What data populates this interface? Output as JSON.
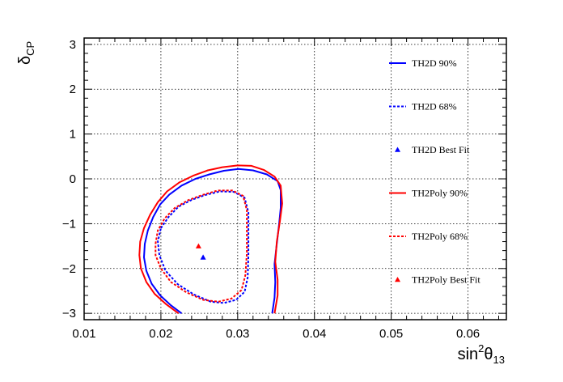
{
  "chart_data": {
    "type": "line",
    "xlabel": {
      "base": "sin",
      "sup": "2",
      "mid": "θ",
      "sub": "13"
    },
    "ylabel": {
      "base": "δ",
      "sub": "CP"
    },
    "xlim": [
      0.01,
      0.065
    ],
    "ylim": [
      -3.14159,
      3.14159
    ],
    "x_ticks": [
      0.01,
      0.02,
      0.03,
      0.04,
      0.05,
      0.06
    ],
    "x_tick_labels": [
      "0.01",
      "0.02",
      "0.03",
      "0.04",
      "0.05",
      "0.06"
    ],
    "y_ticks": [
      -3,
      -2,
      -1,
      0,
      1,
      2,
      3
    ],
    "y_tick_labels": [
      "−3",
      "−2",
      "−1",
      "0",
      "1",
      "2",
      "3"
    ],
    "grid": true,
    "legend_position": "right",
    "series": [
      {
        "name": "TH2D 90%",
        "kind": "contour",
        "color": "#0000ff",
        "dash": "solid",
        "points": [
          [
            0.0227,
            -3.0
          ],
          [
            0.0213,
            -2.82
          ],
          [
            0.0199,
            -2.6
          ],
          [
            0.0188,
            -2.34
          ],
          [
            0.0181,
            -2.05
          ],
          [
            0.0178,
            -1.75
          ],
          [
            0.0179,
            -1.45
          ],
          [
            0.0183,
            -1.15
          ],
          [
            0.019,
            -0.85
          ],
          [
            0.0199,
            -0.57
          ],
          [
            0.0211,
            -0.35
          ],
          [
            0.0227,
            -0.15
          ],
          [
            0.0245,
            0.0
          ],
          [
            0.0263,
            0.1
          ],
          [
            0.0282,
            0.18
          ],
          [
            0.0301,
            0.22
          ],
          [
            0.032,
            0.19
          ],
          [
            0.0338,
            0.1
          ],
          [
            0.0352,
            -0.05
          ],
          [
            0.0356,
            -0.25
          ],
          [
            0.0356,
            -0.65
          ],
          [
            0.0354,
            -1.0
          ],
          [
            0.0351,
            -1.45
          ],
          [
            0.0348,
            -1.9
          ],
          [
            0.0349,
            -2.3
          ],
          [
            0.0348,
            -2.65
          ],
          [
            0.0345,
            -3.0
          ]
        ]
      },
      {
        "name": "TH2D 68%",
        "kind": "contour",
        "color": "#0000ff",
        "dash": "dashed",
        "points": [
          [
            0.02,
            -1.1
          ],
          [
            0.021,
            -0.85
          ],
          [
            0.0223,
            -0.62
          ],
          [
            0.024,
            -0.47
          ],
          [
            0.0258,
            -0.36
          ],
          [
            0.0277,
            -0.28
          ],
          [
            0.0295,
            -0.29
          ],
          [
            0.0309,
            -0.42
          ],
          [
            0.0314,
            -0.75
          ],
          [
            0.0314,
            -1.2
          ],
          [
            0.0314,
            -1.7
          ],
          [
            0.0313,
            -2.2
          ],
          [
            0.0309,
            -2.52
          ],
          [
            0.0298,
            -2.7
          ],
          [
            0.0282,
            -2.77
          ],
          [
            0.0265,
            -2.74
          ],
          [
            0.0243,
            -2.58
          ],
          [
            0.0222,
            -2.35
          ],
          [
            0.0206,
            -2.05
          ],
          [
            0.0198,
            -1.7
          ],
          [
            0.0196,
            -1.4
          ],
          [
            0.02,
            -1.1
          ]
        ]
      },
      {
        "name": "TH2D Best Fit",
        "kind": "marker",
        "color": "#0000ff",
        "points": [
          [
            0.0255,
            -1.75
          ]
        ]
      },
      {
        "name": "TH2Poly 90%",
        "kind": "contour",
        "color": "#ff0000",
        "dash": "solid",
        "points": [
          [
            0.0223,
            -3.0
          ],
          [
            0.0207,
            -2.8
          ],
          [
            0.0192,
            -2.57
          ],
          [
            0.0181,
            -2.3
          ],
          [
            0.0174,
            -2.0
          ],
          [
            0.0172,
            -1.7
          ],
          [
            0.0173,
            -1.4
          ],
          [
            0.0178,
            -1.1
          ],
          [
            0.0186,
            -0.8
          ],
          [
            0.0196,
            -0.52
          ],
          [
            0.0208,
            -0.28
          ],
          [
            0.0224,
            -0.08
          ],
          [
            0.0242,
            0.07
          ],
          [
            0.0261,
            0.19
          ],
          [
            0.028,
            0.26
          ],
          [
            0.03,
            0.3
          ],
          [
            0.0318,
            0.29
          ],
          [
            0.0334,
            0.2
          ],
          [
            0.0348,
            0.05
          ],
          [
            0.0356,
            -0.15
          ],
          [
            0.0358,
            -0.55
          ],
          [
            0.0355,
            -0.95
          ],
          [
            0.0351,
            -1.4
          ],
          [
            0.0349,
            -1.85
          ],
          [
            0.0352,
            -2.25
          ],
          [
            0.0352,
            -2.6
          ],
          [
            0.0348,
            -3.0
          ]
        ]
      },
      {
        "name": "TH2Poly 68%",
        "kind": "contour",
        "color": "#ff0000",
        "dash": "dashed",
        "points": [
          [
            0.0193,
            -1.45
          ],
          [
            0.0196,
            -1.15
          ],
          [
            0.0205,
            -0.88
          ],
          [
            0.0218,
            -0.65
          ],
          [
            0.0235,
            -0.48
          ],
          [
            0.0254,
            -0.36
          ],
          [
            0.0274,
            -0.26
          ],
          [
            0.0293,
            -0.26
          ],
          [
            0.0307,
            -0.38
          ],
          [
            0.0312,
            -0.7
          ],
          [
            0.0312,
            -1.15
          ],
          [
            0.0312,
            -1.65
          ],
          [
            0.031,
            -2.15
          ],
          [
            0.0305,
            -2.48
          ],
          [
            0.0292,
            -2.67
          ],
          [
            0.0275,
            -2.74
          ],
          [
            0.0255,
            -2.7
          ],
          [
            0.0233,
            -2.53
          ],
          [
            0.0213,
            -2.3
          ],
          [
            0.02,
            -2.0
          ],
          [
            0.0193,
            -1.7
          ],
          [
            0.0193,
            -1.45
          ]
        ]
      },
      {
        "name": "TH2Poly Best Fit",
        "kind": "marker",
        "color": "#ff0000",
        "points": [
          [
            0.0249,
            -1.5
          ]
        ]
      }
    ]
  }
}
